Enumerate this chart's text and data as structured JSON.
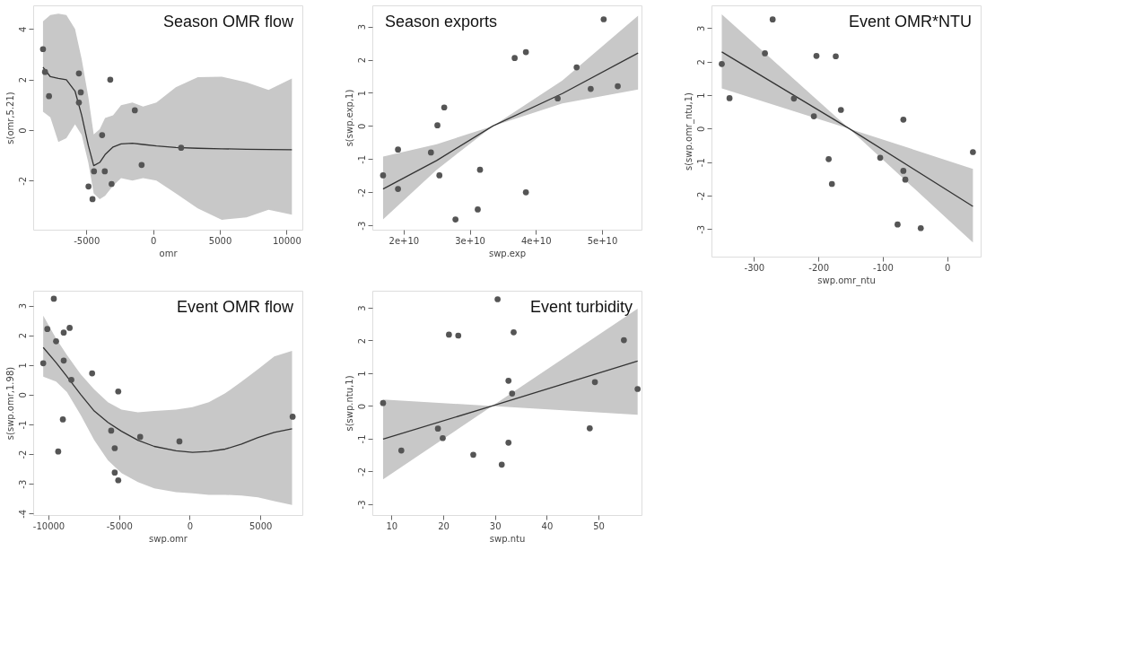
{
  "chart_data": [
    {
      "type": "line",
      "title": "Season OMR flow",
      "xlabel": "omr",
      "ylabel": "s(omr,5.21)",
      "xlim": [
        -8985,
        11185
      ],
      "ylim": [
        -3.94,
        4.93
      ],
      "xticks": [
        -5000,
        0,
        5000,
        10000
      ],
      "yticks": [
        -2,
        0,
        2,
        4
      ],
      "grid": false,
      "series": [
        {
          "type": "line",
          "color": "#333333",
          "marker": "none",
          "x": [
            -8250,
            -7700,
            -7100,
            -6500,
            -5850,
            -5350,
            -4850,
            -4450,
            -4000,
            -3600,
            -3000,
            -2400,
            -1550,
            -750,
            250,
            1700,
            3350,
            5150,
            7000,
            8650,
            10400
          ],
          "values": [
            2.49,
            2.11,
            2.04,
            1.99,
            1.54,
            0.58,
            -0.62,
            -1.41,
            -1.28,
            -0.97,
            -0.67,
            -0.55,
            -0.52,
            -0.57,
            -0.63,
            -0.69,
            -0.72,
            -0.74,
            -0.76,
            -0.77,
            -0.78
          ],
          "lower": [
            0.73,
            0.5,
            -0.47,
            -0.32,
            0.23,
            -0.2,
            -1.3,
            -2.5,
            -2.73,
            -2.6,
            -2.2,
            -1.9,
            -2.0,
            -1.9,
            -2.0,
            -2.5,
            -3.1,
            -3.55,
            -3.45,
            -3.15,
            -3.35
          ],
          "upper": [
            4.3,
            4.55,
            4.6,
            4.55,
            4.0,
            2.8,
            1.29,
            -0.17,
            0.03,
            0.48,
            0.58,
            0.98,
            1.09,
            0.93,
            1.09,
            1.69,
            2.09,
            2.11,
            1.89,
            1.59,
            2.04
          ]
        },
        {
          "type": "scatter",
          "color": "#555555",
          "marker": "circle",
          "x": [
            -8250,
            -8100,
            -7800,
            -5560,
            -5560,
            -5420,
            -3210,
            -3820,
            -4840,
            -4540,
            -4430,
            -3620,
            -3110,
            -1370,
            -860,
            2100
          ],
          "values": [
            3.2,
            2.3,
            1.34,
            2.24,
            1.09,
            1.49,
            1.99,
            -0.2,
            -2.23,
            -2.73,
            -1.63,
            -1.63,
            -2.13,
            0.78,
            -1.38,
            -0.7
          ]
        }
      ]
    },
    {
      "type": "line",
      "title": "Season exports",
      "xlabel": "swp.exp",
      "ylabel": "s(swp.exp,1)",
      "xlim": [
        15270000000,
        55970000000
      ],
      "ylim": [
        -3.13,
        3.64
      ],
      "xticks": [
        {
          "value": 20000000000,
          "label": "2e+10"
        },
        {
          "value": 30000000000,
          "label": "3e+10"
        },
        {
          "value": 40000000000,
          "label": "4e+10"
        },
        {
          "value": 50000000000,
          "label": "5e+10"
        }
      ],
      "yticks": [
        -3,
        -2,
        -1,
        0,
        1,
        2,
        3
      ],
      "grid": false,
      "series": [
        {
          "type": "line",
          "color": "#333333",
          "marker": "none",
          "x": [
            16890000000,
            25000000000,
            33500000000,
            44000000000,
            55450000000
          ],
          "values": [
            -1.9,
            -1.04,
            0,
            0.98,
            2.2
          ],
          "lower": [
            -2.82,
            -1.32,
            0,
            0.68,
            1.1
          ],
          "upper": [
            -0.92,
            -0.55,
            0,
            1.37,
            3.33
          ]
        },
        {
          "type": "scatter",
          "color": "#555555",
          "marker": "circle",
          "x": [
            16890000000,
            19150000000,
            19150000000,
            24130000000,
            25110000000,
            25410000000,
            26140000000,
            27840000000,
            31210000000,
            31550000000,
            36790000000,
            38490000000,
            38490000000,
            43300000000,
            46160000000,
            48290000000,
            50250000000,
            52380000000
          ],
          "values": [
            -1.49,
            -0.71,
            -1.9,
            -0.8,
            0.02,
            -1.49,
            0.56,
            -2.82,
            -2.52,
            -1.32,
            2.05,
            2.23,
            -2.0,
            0.83,
            1.77,
            1.12,
            3.22,
            1.2
          ]
        }
      ]
    },
    {
      "type": "line",
      "title": "Event OMR flow",
      "xlabel": "swp.omr",
      "ylabel": "s(swp.omr,1.98)",
      "xlim": [
        -11080,
        7970
      ],
      "ylim": [
        -4.05,
        3.5
      ],
      "xticks": [
        -10000,
        -5000,
        0,
        5000
      ],
      "yticks": [
        -4,
        -3,
        -2,
        -1,
        0,
        1,
        2,
        3
      ],
      "grid": false,
      "series": [
        {
          "type": "line",
          "color": "#333333",
          "marker": "none",
          "x": [
            -10370,
            -9460,
            -8690,
            -7720,
            -6760,
            -5790,
            -4830,
            -3670,
            -2510,
            -970,
            190,
            1350,
            2510,
            3670,
            4830,
            5980,
            7240
          ],
          "values": [
            1.59,
            1.08,
            0.61,
            0.01,
            -0.55,
            -0.93,
            -1.23,
            -1.53,
            -1.74,
            -1.89,
            -1.94,
            -1.91,
            -1.83,
            -1.66,
            -1.44,
            -1.27,
            -1.15
          ],
          "lower": [
            0.61,
            0.44,
            0.09,
            -0.68,
            -1.53,
            -2.21,
            -2.64,
            -2.94,
            -3.15,
            -3.28,
            -3.32,
            -3.37,
            -3.37,
            -3.39,
            -3.45,
            -3.58,
            -3.71
          ],
          "upper": [
            2.66,
            1.89,
            1.33,
            0.69,
            0.18,
            -0.25,
            -0.5,
            -0.59,
            -0.55,
            -0.5,
            -0.42,
            -0.25,
            0.05,
            0.44,
            0.86,
            1.29,
            1.48
          ]
        },
        {
          "type": "scatter",
          "color": "#555555",
          "marker": "circle",
          "x": [
            -10370,
            -10080,
            -9620,
            -9460,
            -9310,
            -8920,
            -8920,
            -8980,
            -8500,
            -8380,
            -6910,
            -5560,
            -5310,
            -5310,
            -5060,
            -5060,
            -3510,
            -730,
            7280
          ],
          "values": [
            1.06,
            2.21,
            3.23,
            1.8,
            -1.91,
            2.09,
            1.15,
            -0.83,
            2.25,
            0.5,
            0.72,
            -1.21,
            -1.8,
            -2.62,
            0.11,
            -2.88,
            -1.42,
            -1.57,
            -0.74
          ]
        }
      ]
    },
    {
      "type": "line",
      "title": "Event turbidity",
      "xlabel": "swp.ntu",
      "ylabel": "s(swp.ntu,1)",
      "xlim": [
        6.3,
        58.3
      ],
      "ylim": [
        -3.33,
        3.52
      ],
      "xticks": [
        10,
        20,
        30,
        40,
        50
      ],
      "yticks": [
        -3,
        -2,
        -1,
        0,
        1,
        2,
        3
      ],
      "grid": false,
      "series": [
        {
          "type": "line",
          "color": "#333333",
          "marker": "none",
          "x": [
            8.37,
            29.46,
            57.55
          ],
          "values": [
            -1.01,
            0,
            1.37
          ],
          "lower": [
            -2.24,
            0,
            -0.27
          ],
          "upper": [
            0.2,
            0,
            2.97
          ]
        },
        {
          "type": "scatter",
          "color": "#555555",
          "marker": "circle",
          "x": [
            8.37,
            11.9,
            18.97,
            19.9,
            21.1,
            22.9,
            25.8,
            30.5,
            31.3,
            32.6,
            32.6,
            33.3,
            33.6,
            48.3,
            49.3,
            54.9,
            57.55
          ],
          "values": [
            0.09,
            -1.36,
            -0.69,
            -0.98,
            2.18,
            2.15,
            -1.49,
            3.26,
            -1.79,
            0.77,
            -1.12,
            0.38,
            2.25,
            -0.68,
            0.73,
            2.01,
            0.52
          ]
        }
      ]
    },
    {
      "type": "line",
      "title": "Event OMR*NTU",
      "xlabel": "swp.omr_ntu",
      "ylabel": "s(swp.omr_ntu,1)",
      "xlim": [
        -366,
        52
      ],
      "ylim": [
        -3.82,
        3.68
      ],
      "xticks": [
        -300,
        -200,
        -100,
        0
      ],
      "yticks": [
        -3,
        -2,
        -1,
        0,
        1,
        2,
        3
      ],
      "grid": false,
      "series": [
        {
          "type": "line",
          "color": "#333333",
          "marker": "none",
          "x": [
            -350,
            -152,
            40
          ],
          "values": [
            2.29,
            0,
            -2.32
          ],
          "lower": [
            1.2,
            0,
            -3.4
          ],
          "upper": [
            3.41,
            0,
            -1.2
          ]
        },
        {
          "type": "scatter",
          "color": "#555555",
          "marker": "circle",
          "x": [
            -350,
            -338,
            -271,
            -283,
            -238,
            -207,
            -203,
            -173,
            -184,
            -179,
            -165,
            -104,
            -77,
            -68,
            -68,
            -65,
            -41,
            40
          ],
          "values": [
            1.93,
            0.91,
            3.26,
            2.25,
            0.9,
            0.37,
            2.17,
            2.16,
            -0.91,
            -1.65,
            0.56,
            -0.87,
            -2.86,
            0.27,
            -1.26,
            -1.52,
            -2.97,
            -0.7
          ]
        }
      ]
    }
  ]
}
